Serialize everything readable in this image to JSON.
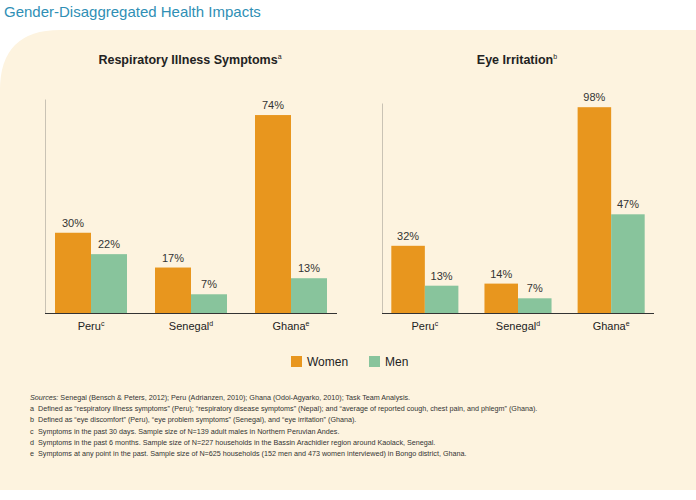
{
  "title": "Gender-Disaggregated Health Impacts",
  "chart_data": [
    {
      "type": "bar",
      "title": "Respiratory Illness Symptoms",
      "title_note": "a",
      "categories": [
        "Peru",
        "Senegal",
        "Ghana"
      ],
      "category_notes": [
        "c",
        "d",
        "e"
      ],
      "series": [
        {
          "name": "Women",
          "color": "#e8961e",
          "values": [
            30,
            17,
            74
          ],
          "value_labels": [
            "30%",
            "17%",
            "74%"
          ]
        },
        {
          "name": "Men",
          "color": "#88c49c",
          "values": [
            22,
            7,
            13
          ],
          "value_labels": [
            "22%",
            "7%",
            "13%"
          ]
        }
      ],
      "ylim": [
        0,
        80
      ],
      "yticks": [],
      "tick_labels": "x",
      "data_labels": true,
      "legend": "bottom"
    },
    {
      "type": "bar",
      "title": "Eye Irritation",
      "title_note": "b",
      "categories": [
        "Peru",
        "Senegal",
        "Ghana"
      ],
      "category_notes": [
        "c",
        "d",
        "e"
      ],
      "series": [
        {
          "name": "Women",
          "color": "#e8961e",
          "values": [
            32,
            14,
            98
          ],
          "value_labels": [
            "32%",
            "14%",
            "98%"
          ]
        },
        {
          "name": "Men",
          "color": "#88c49c",
          "values": [
            13,
            7,
            47
          ],
          "value_labels": [
            "13%",
            "7%",
            "47%"
          ]
        }
      ],
      "ylim": [
        0,
        100
      ],
      "yticks": [],
      "tick_labels": "x",
      "data_labels": true,
      "legend": "bottom"
    }
  ],
  "sources": {
    "label": "Sources:",
    "text": " Senegal (Bensch & Peters, 2012); Peru (Adrianzen, 2010); Ghana (Odoi-Agyarko, 2010); Task Team Analysis."
  },
  "notes": [
    {
      "mark": "a",
      "text": "Defined as “respiratory illness symptoms” (Peru); “respiratory disease symptoms” (Nepal); and “average of reported cough, chest pain, and phlegm” (Ghana)."
    },
    {
      "mark": "b",
      "text": "Defined as “eye discomfort” (Peru), “eye problem symptoms” (Senegal), and “eye irritation” (Ghana)."
    },
    {
      "mark": "c",
      "text": "Symptoms in the past 30 days. Sample size of N=139 adult males in Northern Peruvian Andes."
    },
    {
      "mark": "d",
      "text": "Symptoms in the past 6 months. Sample size of N=227 households in the Bassin Arachidier region around Kaolack, Senegal."
    },
    {
      "mark": "e",
      "text": "Symptoms at any point in the past. Sample size of N=625 households (152 men and 473 women interviewed) in Bongo district, Ghana."
    }
  ]
}
